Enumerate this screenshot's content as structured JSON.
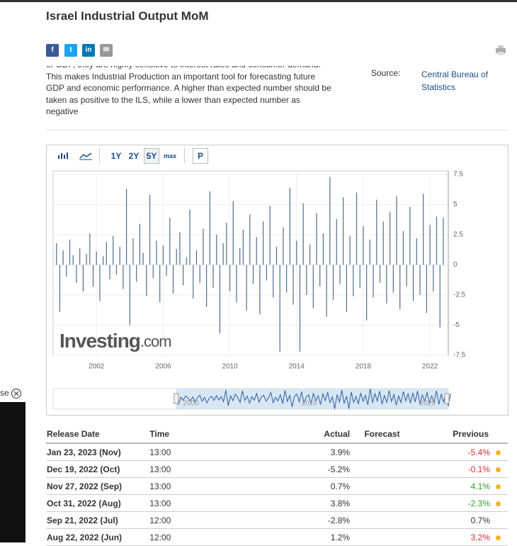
{
  "header": {
    "title": "Israel Industrial Output MoM",
    "social": [
      "f",
      "t",
      "in",
      "✉"
    ]
  },
  "description": [
    "of GDP, they are highly sensitive to interest rates and consumer demand.",
    "This makes Industrial Production an important tool for forecasting future",
    "GDP and economic performance. A higher than expected number should be",
    "taken as positive to the ILS, while a lower than expected number as",
    "negative"
  ],
  "source": {
    "label": "Source:",
    "value": "Central Bureau of Statistics"
  },
  "toolbar": [
    "1Y",
    "2Y",
    "5Y",
    "max",
    "P"
  ],
  "side": {
    "text": "se"
  },
  "chart_data": {
    "type": "bar",
    "color": "#506d8e",
    "watermark": [
      "Investing",
      ".com"
    ],
    "x": [
      1999.6,
      1999.8,
      2000.0,
      2000.2,
      2000.4,
      2000.6,
      2000.8,
      2001.0,
      2001.2,
      2001.4,
      2001.6,
      2001.8,
      2002.0,
      2002.2,
      2002.4,
      2002.6,
      2002.8,
      2003.0,
      2003.2,
      2003.4,
      2003.6,
      2003.8,
      2004.0,
      2004.2,
      2004.4,
      2004.6,
      2004.8,
      2005.0,
      2005.2,
      2005.4,
      2005.6,
      2005.8,
      2006.0,
      2006.2,
      2006.4,
      2006.6,
      2006.8,
      2007.0,
      2007.2,
      2007.4,
      2007.6,
      2007.8,
      2008.0,
      2008.2,
      2008.4,
      2008.6,
      2008.8,
      2009.0,
      2009.2,
      2009.4,
      2009.6,
      2009.8,
      2010.0,
      2010.2,
      2010.4,
      2010.6,
      2010.8,
      2011.0,
      2011.2,
      2011.4,
      2011.6,
      2011.8,
      2012.0,
      2012.2,
      2012.4,
      2012.6,
      2012.8,
      2013.0,
      2013.2,
      2013.4,
      2013.6,
      2013.8,
      2014.0,
      2014.2,
      2014.4,
      2014.6,
      2014.8,
      2015.0,
      2015.2,
      2015.4,
      2015.6,
      2015.8,
      2016.0,
      2016.2,
      2016.4,
      2016.6,
      2016.8,
      2017.0,
      2017.2,
      2017.4,
      2017.6,
      2017.8,
      2018.0,
      2018.2,
      2018.4,
      2018.6,
      2018.8,
      2019.0,
      2019.2,
      2019.4,
      2019.6,
      2019.8,
      2020.0,
      2020.2,
      2020.4,
      2020.6,
      2020.8,
      2021.0,
      2021.2,
      2021.4,
      2021.6,
      2021.8,
      2022.0,
      2022.2,
      2022.4,
      2022.6,
      2022.8
    ],
    "values": [
      1.8,
      -3.9,
      1.2,
      -1.0,
      2.1,
      0.8,
      -1.5,
      1.4,
      -2.2,
      0.9,
      2.6,
      -1.8,
      1.1,
      -3.0,
      0.7,
      1.9,
      -1.2,
      2.4,
      -0.8,
      1.5,
      -2.0,
      6.3,
      -5.0,
      2.2,
      -1.4,
      3.4,
      1.0,
      -2.6,
      5.8,
      -1.1,
      2.0,
      -3.1,
      1.6,
      -0.9,
      3.9,
      -2.4,
      1.3,
      2.7,
      -1.7,
      0.6,
      4.6,
      -2.8,
      1.2,
      -1.5,
      3.0,
      -3.5,
      6.1,
      -1.9,
      2.5,
      -5.7,
      1.8,
      3.5,
      -2.2,
      5.3,
      -3.1,
      1.4,
      2.9,
      -3.8,
      4.2,
      -1.6,
      2.3,
      -4.1,
      3.6,
      -1.3,
      4.9,
      -2.7,
      1.5,
      -7.2,
      3.1,
      -2.3,
      6.4,
      -3.3,
      2.0,
      -7.2,
      5.1,
      -2.5,
      1.7,
      -3.6,
      4.3,
      -1.8,
      2.6,
      -4.3,
      7.3,
      -2.9,
      3.8,
      -1.6,
      5.6,
      -3.9,
      2.4,
      -2.6,
      6.0,
      -1.9,
      3.2,
      -4.6,
      2.1,
      -2.7,
      5.4,
      -1.5,
      3.6,
      -3.2,
      4.4,
      -2.3,
      5.7,
      -3.7,
      2.8,
      -1.8,
      4.8,
      -3.0,
      2.2,
      -2.5,
      5.9,
      -4.0,
      3.3,
      -2.2,
      4.0,
      -5.2,
      3.9
    ],
    "xlim": [
      1999.4,
      2023.1
    ],
    "xticks": [
      2002,
      2006,
      2010,
      2014,
      2018,
      2022
    ],
    "ylim": [
      -7.5,
      7.5
    ],
    "yticks": [
      7.5,
      5,
      2.5,
      0,
      -2.5,
      -5,
      -7.5
    ],
    "grid": true,
    "navigator": {
      "xlim": [
        1989.2,
        2022.6
      ],
      "xticks": [
        2000,
        2010,
        2020
      ]
    }
  },
  "table": {
    "columns": [
      "Release Date",
      "Time",
      "Actual",
      "Forecast",
      "Previous"
    ],
    "rows": [
      [
        "Jan 23, 2023 (Nov)",
        "13:00",
        "3.9%",
        "",
        "-5.4%"
      ],
      [
        "Dec 19, 2022 (Oct)",
        "13:00",
        "-5.2%",
        "",
        "-0.1%"
      ],
      [
        "Nov 27, 2022 (Sep)",
        "13:00",
        "0.7%",
        "",
        "4.1%"
      ],
      [
        "Oct 31, 2022 (Aug)",
        "13:00",
        "3.8%",
        "",
        "-2.3%"
      ],
      [
        "Sep 21, 2022 (Jul)",
        "12:00",
        "-2.8%",
        "",
        "0.7%"
      ],
      [
        "Aug 22, 2022 (Jun)",
        "12:00",
        "1.2%",
        "",
        "3.2%"
      ]
    ],
    "previous_colors": [
      "#d32f2f",
      "#d32f2f",
      "#2e9e2e",
      "#2e9e2e",
      "#333333",
      "#d32f2f"
    ],
    "revised": [
      true,
      true,
      true,
      true,
      false,
      true
    ]
  }
}
